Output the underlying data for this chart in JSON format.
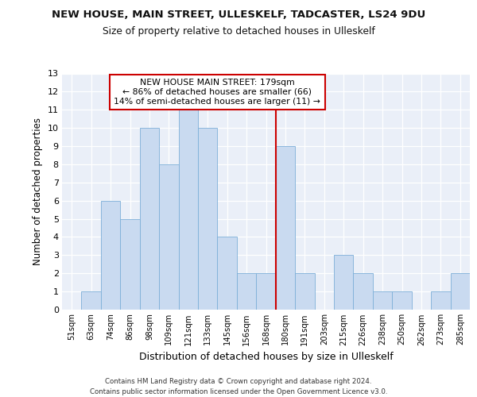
{
  "title1": "NEW HOUSE, MAIN STREET, ULLESKELF, TADCASTER, LS24 9DU",
  "title2": "Size of property relative to detached houses in Ulleskelf",
  "xlabel": "Distribution of detached houses by size in Ulleskelf",
  "ylabel": "Number of detached properties",
  "categories": [
    "51sqm",
    "63sqm",
    "74sqm",
    "86sqm",
    "98sqm",
    "109sqm",
    "121sqm",
    "133sqm",
    "145sqm",
    "156sqm",
    "168sqm",
    "180sqm",
    "191sqm",
    "203sqm",
    "215sqm",
    "226sqm",
    "238sqm",
    "250sqm",
    "262sqm",
    "273sqm",
    "285sqm"
  ],
  "values": [
    0,
    1,
    6,
    5,
    10,
    8,
    11,
    10,
    4,
    2,
    2,
    9,
    2,
    0,
    3,
    2,
    1,
    1,
    0,
    1,
    2
  ],
  "bar_color": "#c9daf0",
  "bar_edge_color": "#7dafd8",
  "highlight_bin_index": 11,
  "highlight_color": "#cc0000",
  "annotation_text": "NEW HOUSE MAIN STREET: 179sqm\n← 86% of detached houses are smaller (66)\n14% of semi-detached houses are larger (11) →",
  "annotation_box_color": "#cc0000",
  "ylim_max": 13,
  "footer_line1": "Contains HM Land Registry data © Crown copyright and database right 2024.",
  "footer_line2": "Contains public sector information licensed under the Open Government Licence v3.0.",
  "bg_color": "#eaeff8",
  "grid_color": "#ffffff"
}
